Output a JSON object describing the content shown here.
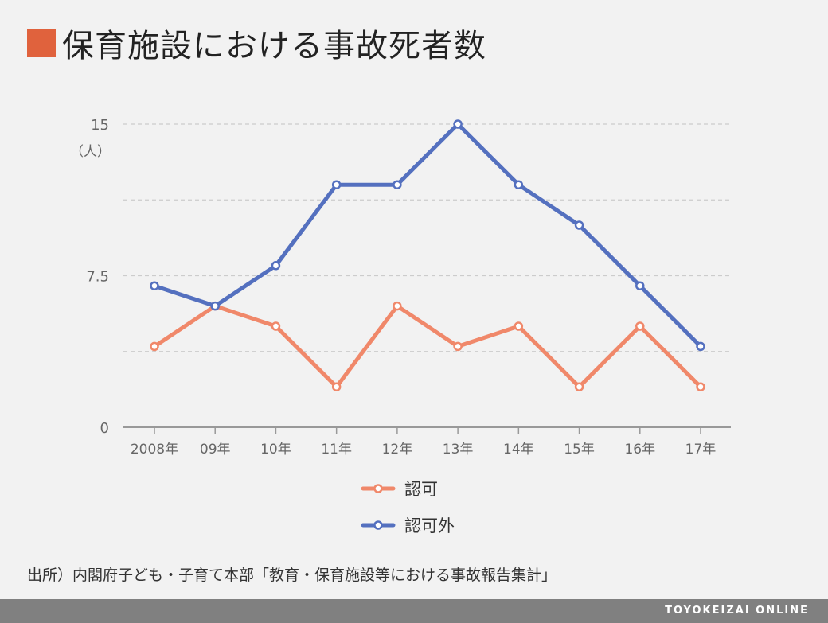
{
  "title": "保育施設における事故死者数",
  "accent_color": "#e0623d",
  "source": "出所）内閣府子ども・子育て本部「教育・保育施設等における事故報告集計」",
  "brand": "TOYOKEIZAI ONLINE",
  "chart_data": {
    "type": "line",
    "title": "保育施設における事故死者数",
    "unit_label": "（人）",
    "categories": [
      "2008年",
      "09年",
      "10年",
      "11年",
      "12年",
      "13年",
      "14年",
      "15年",
      "16年",
      "17年"
    ],
    "series": [
      {
        "name": "認可",
        "color": "#f0886a",
        "values": [
          4,
          6,
          5,
          2,
          6,
          4,
          5,
          2,
          5,
          2
        ]
      },
      {
        "name": "認可外",
        "color": "#5470bf",
        "values": [
          7,
          6,
          8,
          12,
          12,
          15,
          12,
          10,
          7,
          4
        ]
      }
    ],
    "yticks": [
      "0",
      "7.5",
      "15"
    ],
    "ylim": [
      0,
      15
    ],
    "grid": true,
    "legend_position": "bottom-center"
  }
}
